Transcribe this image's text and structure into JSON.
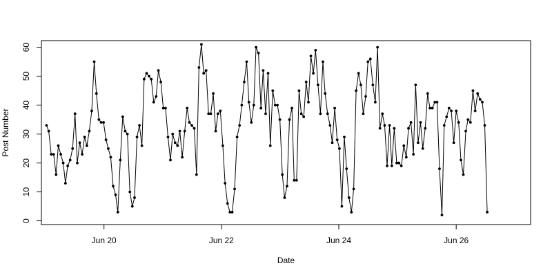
{
  "chart_data": {
    "type": "line",
    "markers": true,
    "xlabel": "Date",
    "ylabel": "Post Number",
    "x_axis_type": "date",
    "x_ticks": [
      {
        "date": "2021-06-20",
        "label": "Jun 20"
      },
      {
        "date": "2021-06-22",
        "label": "Jun 22"
      },
      {
        "date": "2021-06-24",
        "label": "Jun 24"
      },
      {
        "date": "2021-06-26",
        "label": "Jun 26"
      }
    ],
    "y_ticks": [
      0,
      10,
      20,
      30,
      40,
      50,
      60
    ],
    "xlim": [
      "2021-06-18T22:25",
      "2021-06-27T06:25"
    ],
    "ylim": [
      -1.3,
      62.3
    ],
    "grid": false,
    "series": [
      {
        "color": "#000000",
        "points": [
          {
            "x": "2021-06-19T00:30",
            "y": 33
          },
          {
            "x": "2021-06-19T01:25",
            "y": 31
          },
          {
            "x": "2021-06-19T02:25",
            "y": 23
          },
          {
            "x": "2021-06-19T03:25",
            "y": 23
          },
          {
            "x": "2021-06-19T04:25",
            "y": 16
          },
          {
            "x": "2021-06-19T05:20",
            "y": 26
          },
          {
            "x": "2021-06-19T06:20",
            "y": 23
          },
          {
            "x": "2021-06-19T07:20",
            "y": 20
          },
          {
            "x": "2021-06-19T08:15",
            "y": 13
          },
          {
            "x": "2021-06-19T09:10",
            "y": 19
          },
          {
            "x": "2021-06-19T10:10",
            "y": 21
          },
          {
            "x": "2021-06-19T11:10",
            "y": 25
          },
          {
            "x": "2021-06-19T12:10",
            "y": 37
          },
          {
            "x": "2021-06-19T13:05",
            "y": 20
          },
          {
            "x": "2021-06-19T14:05",
            "y": 27
          },
          {
            "x": "2021-06-19T15:05",
            "y": 23
          },
          {
            "x": "2021-06-19T16:05",
            "y": 29
          },
          {
            "x": "2021-06-19T17:00",
            "y": 26
          },
          {
            "x": "2021-06-19T18:00",
            "y": 31
          },
          {
            "x": "2021-06-19T19:00",
            "y": 38
          },
          {
            "x": "2021-06-19T20:00",
            "y": 55
          },
          {
            "x": "2021-06-19T20:55",
            "y": 44
          },
          {
            "x": "2021-06-19T21:55",
            "y": 35
          },
          {
            "x": "2021-06-19T22:50",
            "y": 34
          },
          {
            "x": "2021-06-19T23:50",
            "y": 34
          },
          {
            "x": "2021-06-20T00:50",
            "y": 28
          },
          {
            "x": "2021-06-20T01:45",
            "y": 25
          },
          {
            "x": "2021-06-20T02:45",
            "y": 22
          },
          {
            "x": "2021-06-20T03:45",
            "y": 12
          },
          {
            "x": "2021-06-20T04:45",
            "y": 9
          },
          {
            "x": "2021-06-20T05:40",
            "y": 3
          },
          {
            "x": "2021-06-20T06:40",
            "y": 21
          },
          {
            "x": "2021-06-20T07:40",
            "y": 36
          },
          {
            "x": "2021-06-20T08:40",
            "y": 31
          },
          {
            "x": "2021-06-20T09:35",
            "y": 30
          },
          {
            "x": "2021-06-20T10:35",
            "y": 10
          },
          {
            "x": "2021-06-20T11:35",
            "y": 5
          },
          {
            "x": "2021-06-20T12:30",
            "y": 8
          },
          {
            "x": "2021-06-20T13:30",
            "y": 29
          },
          {
            "x": "2021-06-20T14:30",
            "y": 33
          },
          {
            "x": "2021-06-20T15:30",
            "y": 26
          },
          {
            "x": "2021-06-20T16:25",
            "y": 49
          },
          {
            "x": "2021-06-20T17:25",
            "y": 51
          },
          {
            "x": "2021-06-20T18:25",
            "y": 50
          },
          {
            "x": "2021-06-20T19:20",
            "y": 49
          },
          {
            "x": "2021-06-20T20:20",
            "y": 41
          },
          {
            "x": "2021-06-20T21:20",
            "y": 43
          },
          {
            "x": "2021-06-20T22:15",
            "y": 52
          },
          {
            "x": "2021-06-20T23:15",
            "y": 48
          },
          {
            "x": "2021-06-21T00:15",
            "y": 39
          },
          {
            "x": "2021-06-21T01:10",
            "y": 39
          },
          {
            "x": "2021-06-21T02:10",
            "y": 29
          },
          {
            "x": "2021-06-21T03:10",
            "y": 21
          },
          {
            "x": "2021-06-21T04:05",
            "y": 30
          },
          {
            "x": "2021-06-21T05:05",
            "y": 27
          },
          {
            "x": "2021-06-21T06:05",
            "y": 26
          },
          {
            "x": "2021-06-21T07:00",
            "y": 31
          },
          {
            "x": "2021-06-21T08:00",
            "y": 22
          },
          {
            "x": "2021-06-21T09:00",
            "y": 31
          },
          {
            "x": "2021-06-21T10:00",
            "y": 39
          },
          {
            "x": "2021-06-21T10:55",
            "y": 34
          },
          {
            "x": "2021-06-21T11:55",
            "y": 33
          },
          {
            "x": "2021-06-21T12:55",
            "y": 32
          },
          {
            "x": "2021-06-21T13:50",
            "y": 16
          },
          {
            "x": "2021-06-21T14:50",
            "y": 53
          },
          {
            "x": "2021-06-21T15:50",
            "y": 61
          },
          {
            "x": "2021-06-21T16:45",
            "y": 51
          },
          {
            "x": "2021-06-21T17:45",
            "y": 52
          },
          {
            "x": "2021-06-21T18:45",
            "y": 37
          },
          {
            "x": "2021-06-21T19:40",
            "y": 37
          },
          {
            "x": "2021-06-21T20:40",
            "y": 44
          },
          {
            "x": "2021-06-21T21:40",
            "y": 31
          },
          {
            "x": "2021-06-21T22:35",
            "y": 37
          },
          {
            "x": "2021-06-21T23:35",
            "y": 38
          },
          {
            "x": "2021-06-22T00:35",
            "y": 26
          },
          {
            "x": "2021-06-22T01:30",
            "y": 13
          },
          {
            "x": "2021-06-22T02:30",
            "y": 6
          },
          {
            "x": "2021-06-22T03:30",
            "y": 3
          },
          {
            "x": "2021-06-22T04:25",
            "y": 3
          },
          {
            "x": "2021-06-22T05:25",
            "y": 11
          },
          {
            "x": "2021-06-22T06:25",
            "y": 29
          },
          {
            "x": "2021-06-22T07:25",
            "y": 33
          },
          {
            "x": "2021-06-22T08:20",
            "y": 40
          },
          {
            "x": "2021-06-22T09:20",
            "y": 48
          },
          {
            "x": "2021-06-22T10:20",
            "y": 55
          },
          {
            "x": "2021-06-22T11:15",
            "y": 41
          },
          {
            "x": "2021-06-22T12:15",
            "y": 34
          },
          {
            "x": "2021-06-22T13:15",
            "y": 40
          },
          {
            "x": "2021-06-22T14:10",
            "y": 60
          },
          {
            "x": "2021-06-22T15:10",
            "y": 58
          },
          {
            "x": "2021-06-22T16:10",
            "y": 39
          },
          {
            "x": "2021-06-22T17:05",
            "y": 52
          },
          {
            "x": "2021-06-22T18:05",
            "y": 37
          },
          {
            "x": "2021-06-22T19:05",
            "y": 51
          },
          {
            "x": "2021-06-22T20:00",
            "y": 26
          },
          {
            "x": "2021-06-22T21:00",
            "y": 45
          },
          {
            "x": "2021-06-22T22:00",
            "y": 40
          },
          {
            "x": "2021-06-22T22:55",
            "y": 40
          },
          {
            "x": "2021-06-22T23:55",
            "y": 35
          },
          {
            "x": "2021-06-23T00:55",
            "y": 16
          },
          {
            "x": "2021-06-23T01:50",
            "y": 8
          },
          {
            "x": "2021-06-23T02:50",
            "y": 12
          },
          {
            "x": "2021-06-23T03:50",
            "y": 35
          },
          {
            "x": "2021-06-23T04:50",
            "y": 39
          },
          {
            "x": "2021-06-23T05:45",
            "y": 14
          },
          {
            "x": "2021-06-23T06:45",
            "y": 14
          },
          {
            "x": "2021-06-23T07:45",
            "y": 45
          },
          {
            "x": "2021-06-23T08:40",
            "y": 37
          },
          {
            "x": "2021-06-23T09:40",
            "y": 36
          },
          {
            "x": "2021-06-23T10:40",
            "y": 48
          },
          {
            "x": "2021-06-23T11:35",
            "y": 41
          },
          {
            "x": "2021-06-23T12:35",
            "y": 57
          },
          {
            "x": "2021-06-23T13:35",
            "y": 51
          },
          {
            "x": "2021-06-23T14:30",
            "y": 59
          },
          {
            "x": "2021-06-23T15:30",
            "y": 47
          },
          {
            "x": "2021-06-23T16:30",
            "y": 37
          },
          {
            "x": "2021-06-23T17:30",
            "y": 55
          },
          {
            "x": "2021-06-23T18:25",
            "y": 44
          },
          {
            "x": "2021-06-23T19:25",
            "y": 37
          },
          {
            "x": "2021-06-23T20:25",
            "y": 33
          },
          {
            "x": "2021-06-23T21:20",
            "y": 27
          },
          {
            "x": "2021-06-23T22:20",
            "y": 39
          },
          {
            "x": "2021-06-23T23:20",
            "y": 28
          },
          {
            "x": "2021-06-24T00:15",
            "y": 25
          },
          {
            "x": "2021-06-24T01:15",
            "y": 5
          },
          {
            "x": "2021-06-24T02:15",
            "y": 29
          },
          {
            "x": "2021-06-24T03:10",
            "y": 18
          },
          {
            "x": "2021-06-24T04:10",
            "y": 8
          },
          {
            "x": "2021-06-24T05:10",
            "y": 3
          },
          {
            "x": "2021-06-24T06:05",
            "y": 11
          },
          {
            "x": "2021-06-24T07:05",
            "y": 45
          },
          {
            "x": "2021-06-24T08:05",
            "y": 51
          },
          {
            "x": "2021-06-24T09:00",
            "y": 47
          },
          {
            "x": "2021-06-24T10:00",
            "y": 37
          },
          {
            "x": "2021-06-24T11:00",
            "y": 43
          },
          {
            "x": "2021-06-24T11:55",
            "y": 55
          },
          {
            "x": "2021-06-24T12:55",
            "y": 56
          },
          {
            "x": "2021-06-24T13:55",
            "y": 47
          },
          {
            "x": "2021-06-24T14:55",
            "y": 41
          },
          {
            "x": "2021-06-24T15:50",
            "y": 60
          },
          {
            "x": "2021-06-24T16:50",
            "y": 32
          },
          {
            "x": "2021-06-24T17:50",
            "y": 37
          },
          {
            "x": "2021-06-24T18:45",
            "y": 33
          },
          {
            "x": "2021-06-24T19:45",
            "y": 19
          },
          {
            "x": "2021-06-24T20:45",
            "y": 33
          },
          {
            "x": "2021-06-24T21:40",
            "y": 19
          },
          {
            "x": "2021-06-24T22:40",
            "y": 32
          },
          {
            "x": "2021-06-24T23:40",
            "y": 20
          },
          {
            "x": "2021-06-25T00:35",
            "y": 20
          },
          {
            "x": "2021-06-25T01:35",
            "y": 19
          },
          {
            "x": "2021-06-25T02:35",
            "y": 26
          },
          {
            "x": "2021-06-25T03:35",
            "y": 22
          },
          {
            "x": "2021-06-25T04:30",
            "y": 32
          },
          {
            "x": "2021-06-25T05:30",
            "y": 34
          },
          {
            "x": "2021-06-25T06:30",
            "y": 23
          },
          {
            "x": "2021-06-25T07:25",
            "y": 47
          },
          {
            "x": "2021-06-25T08:25",
            "y": 27
          },
          {
            "x": "2021-06-25T09:25",
            "y": 34
          },
          {
            "x": "2021-06-25T10:20",
            "y": 25
          },
          {
            "x": "2021-06-25T11:20",
            "y": 32
          },
          {
            "x": "2021-06-25T12:20",
            "y": 44
          },
          {
            "x": "2021-06-25T13:15",
            "y": 39
          },
          {
            "x": "2021-06-25T14:15",
            "y": 39
          },
          {
            "x": "2021-06-25T15:15",
            "y": 41
          },
          {
            "x": "2021-06-25T16:10",
            "y": 41
          },
          {
            "x": "2021-06-25T17:10",
            "y": 18
          },
          {
            "x": "2021-06-25T18:10",
            "y": 2
          },
          {
            "x": "2021-06-25T19:05",
            "y": 33
          },
          {
            "x": "2021-06-25T20:05",
            "y": 36
          },
          {
            "x": "2021-06-25T21:05",
            "y": 39
          },
          {
            "x": "2021-06-25T22:00",
            "y": 38
          },
          {
            "x": "2021-06-25T23:00",
            "y": 27
          },
          {
            "x": "2021-06-26T00:00",
            "y": 38
          },
          {
            "x": "2021-06-26T01:00",
            "y": 34
          },
          {
            "x": "2021-06-26T01:55",
            "y": 21
          },
          {
            "x": "2021-06-26T02:55",
            "y": 16
          },
          {
            "x": "2021-06-26T03:55",
            "y": 31
          },
          {
            "x": "2021-06-26T04:50",
            "y": 35
          },
          {
            "x": "2021-06-26T05:50",
            "y": 34
          },
          {
            "x": "2021-06-26T06:50",
            "y": 45
          },
          {
            "x": "2021-06-26T07:45",
            "y": 38
          },
          {
            "x": "2021-06-26T08:45",
            "y": 44
          },
          {
            "x": "2021-06-26T09:45",
            "y": 42
          },
          {
            "x": "2021-06-26T10:40",
            "y": 41
          },
          {
            "x": "2021-06-26T11:40",
            "y": 33
          },
          {
            "x": "2021-06-26T12:40",
            "y": 3
          }
        ]
      }
    ]
  }
}
